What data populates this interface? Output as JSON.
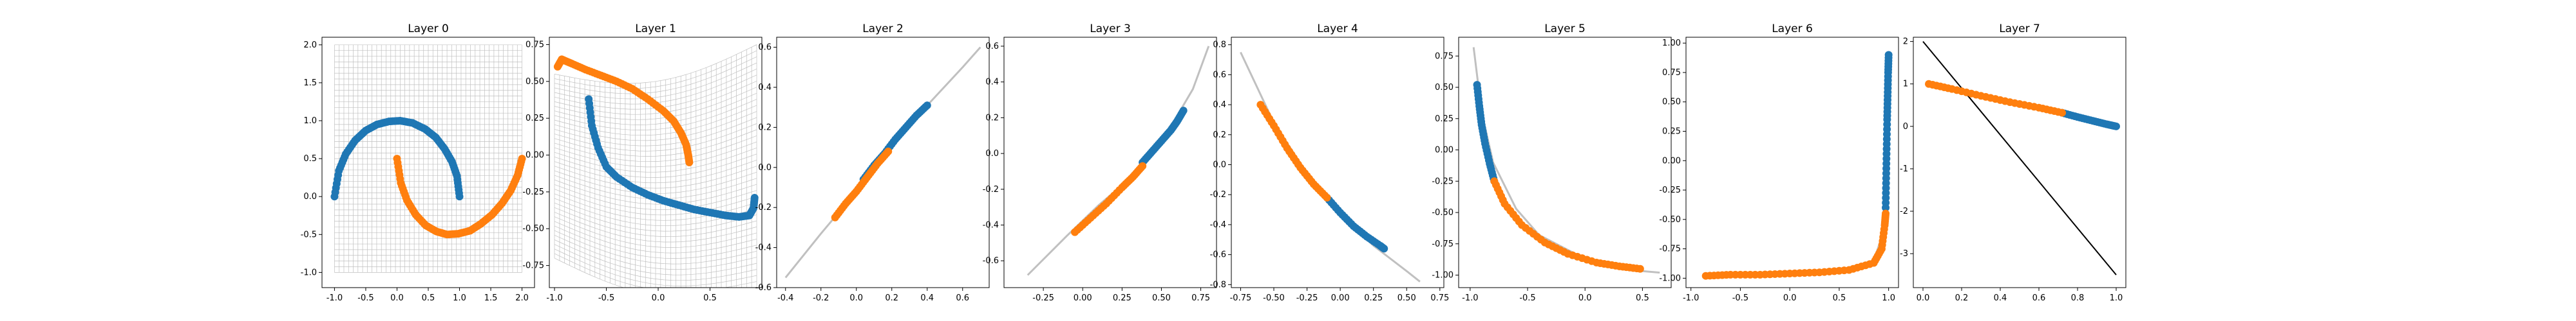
{
  "figure": {
    "background": "#ffffff"
  },
  "colors": {
    "class0": "#1f77b4",
    "class1": "#ff7f0e",
    "grid": "#c0c0c0",
    "boundary": "#000000"
  },
  "chart_data": [
    {
      "type": "scatter",
      "title": "Layer 0",
      "xlim": [
        -1.2,
        2.2
      ],
      "ylim": [
        -1.2,
        2.1
      ],
      "xticks": [
        "-1.0",
        "-0.5",
        "0.0",
        "0.5",
        "1.0",
        "1.5",
        "2.0"
      ],
      "yticks": [
        "-1.0",
        "-0.5",
        "0.0",
        "0.5",
        "1.0",
        "1.5",
        "2.0"
      ],
      "grid_mesh": true,
      "series": [
        {
          "class": 0,
          "x": [
            -1.0,
            -0.93,
            -0.82,
            -0.67,
            -0.5,
            -0.32,
            -0.13,
            0.05,
            0.25,
            0.45,
            0.62,
            0.76,
            0.88,
            0.96,
            1.0
          ],
          "y": [
            0.0,
            0.34,
            0.56,
            0.74,
            0.87,
            0.95,
            0.99,
            1.0,
            0.97,
            0.89,
            0.78,
            0.63,
            0.46,
            0.27,
            0.0
          ]
        },
        {
          "class": 1,
          "x": [
            0.0,
            0.06,
            0.16,
            0.3,
            0.46,
            0.63,
            0.8,
            0.98,
            1.17,
            1.34,
            1.52,
            1.68,
            1.82,
            1.93,
            2.0
          ],
          "y": [
            0.5,
            0.18,
            -0.05,
            -0.24,
            -0.38,
            -0.46,
            -0.5,
            -0.49,
            -0.45,
            -0.36,
            -0.24,
            -0.09,
            0.08,
            0.28,
            0.5
          ]
        }
      ]
    },
    {
      "type": "scatter",
      "title": "Layer 1",
      "xlim": [
        -1.05,
        1.0
      ],
      "ylim": [
        -0.9,
        0.8
      ],
      "xticks": [
        "-1.0",
        "-0.5",
        "0.0",
        "0.5"
      ],
      "yticks": [
        "-0.75",
        "-0.50",
        "-0.25",
        "0.00",
        "0.25",
        "0.50",
        "0.75"
      ],
      "grid_mesh": true,
      "series": [
        {
          "class": 0,
          "x": [
            -0.67,
            -0.64,
            -0.58,
            -0.5,
            -0.4,
            -0.25,
            -0.1,
            0.05,
            0.2,
            0.35,
            0.5,
            0.65,
            0.78,
            0.88,
            0.92,
            0.93
          ],
          "y": [
            0.38,
            0.2,
            0.05,
            -0.08,
            -0.15,
            -0.22,
            -0.27,
            -0.31,
            -0.34,
            -0.37,
            -0.39,
            -0.41,
            -0.42,
            -0.41,
            -0.36,
            -0.29
          ]
        },
        {
          "class": 1,
          "x": [
            -0.97,
            -0.93,
            -0.83,
            -0.7,
            -0.55,
            -0.4,
            -0.25,
            -0.1,
            0.05,
            0.15,
            0.22,
            0.27,
            0.29,
            0.3
          ],
          "y": [
            0.6,
            0.65,
            0.62,
            0.58,
            0.54,
            0.5,
            0.45,
            0.38,
            0.3,
            0.23,
            0.15,
            0.07,
            0.0,
            -0.05
          ]
        }
      ]
    },
    {
      "type": "scatter",
      "title": "Layer 2",
      "xlim": [
        -0.45,
        0.75
      ],
      "ylim": [
        -0.6,
        0.65
      ],
      "xticks": [
        "-0.4",
        "-0.2",
        "0.0",
        "0.2",
        "0.4",
        "0.6"
      ],
      "yticks": [
        "-0.6",
        "-0.4",
        "-0.2",
        "0.0",
        "0.2",
        "0.4",
        "0.6"
      ],
      "curve": {
        "x": [
          -0.4,
          -0.2,
          0.0,
          0.2,
          0.4,
          0.6,
          0.7
        ],
        "y": [
          -0.55,
          -0.33,
          -0.12,
          0.1,
          0.31,
          0.5,
          0.6
        ]
      },
      "series": [
        {
          "class": 0,
          "x": [
            0.04,
            0.1,
            0.16,
            0.22,
            0.28,
            0.34,
            0.4
          ],
          "y": [
            -0.06,
            0.01,
            0.07,
            0.14,
            0.2,
            0.26,
            0.31
          ]
        },
        {
          "class": 1,
          "x": [
            -0.12,
            -0.06,
            0.0,
            0.06,
            0.12,
            0.18
          ],
          "y": [
            -0.25,
            -0.18,
            -0.12,
            -0.05,
            0.02,
            0.08
          ]
        }
      ]
    },
    {
      "type": "scatter",
      "title": "Layer 3",
      "xlim": [
        -0.5,
        0.85
      ],
      "ylim": [
        -0.75,
        0.65
      ],
      "xticks": [
        "-0.25",
        "0.00",
        "0.25",
        "0.50",
        "0.75"
      ],
      "yticks": [
        "-0.6",
        "-0.4",
        "-0.2",
        "0.0",
        "0.2",
        "0.4",
        "0.6"
      ],
      "curve": {
        "x": [
          -0.35,
          -0.1,
          0.1,
          0.3,
          0.5,
          0.7,
          0.8
        ],
        "y": [
          -0.68,
          -0.46,
          -0.29,
          -0.14,
          0.06,
          0.36,
          0.6
        ]
      },
      "series": [
        {
          "class": 0,
          "x": [
            0.38,
            0.44,
            0.5,
            0.56,
            0.6,
            0.64
          ],
          "y": [
            -0.05,
            0.01,
            0.07,
            0.13,
            0.18,
            0.24
          ]
        },
        {
          "class": 1,
          "x": [
            -0.05,
            0.05,
            0.15,
            0.25,
            0.32,
            0.38
          ],
          "y": [
            -0.44,
            -0.36,
            -0.28,
            -0.19,
            -0.13,
            -0.07
          ]
        }
      ]
    },
    {
      "type": "scatter",
      "title": "Layer 4",
      "xlim": [
        -0.82,
        0.78
      ],
      "ylim": [
        -0.82,
        0.85
      ],
      "xticks": [
        "-0.75",
        "-0.50",
        "-0.25",
        "0.00",
        "0.25",
        "0.50",
        "0.75"
      ],
      "yticks": [
        "-0.8",
        "-0.6",
        "-0.4",
        "-0.2",
        "0.0",
        "0.2",
        "0.4",
        "0.6",
        "0.8"
      ],
      "curve": {
        "x": [
          -0.75,
          -0.5,
          -0.25,
          0.0,
          0.25,
          0.5,
          0.6
        ],
        "y": [
          0.75,
          0.28,
          -0.06,
          -0.33,
          -0.54,
          -0.71,
          -0.78
        ]
      },
      "series": [
        {
          "class": 0,
          "x": [
            -0.1,
            0.0,
            0.1,
            0.2,
            0.3,
            0.33
          ],
          "y": [
            -0.22,
            -0.32,
            -0.41,
            -0.48,
            -0.54,
            -0.56
          ]
        },
        {
          "class": 1,
          "x": [
            -0.6,
            -0.5,
            -0.4,
            -0.3,
            -0.2,
            -0.1
          ],
          "y": [
            0.4,
            0.26,
            0.11,
            -0.02,
            -0.13,
            -0.22
          ]
        }
      ]
    },
    {
      "type": "scatter",
      "title": "Layer 5",
      "xlim": [
        -1.1,
        0.75
      ],
      "ylim": [
        -1.1,
        0.9
      ],
      "xticks": [
        "-1.0",
        "-0.5",
        "0.0",
        "0.5"
      ],
      "yticks": [
        "-1.00",
        "-0.75",
        "-0.50",
        "-0.25",
        "0.00",
        "0.25",
        "0.50",
        "0.75"
      ],
      "curve": {
        "x": [
          -0.97,
          -0.9,
          -0.8,
          -0.6,
          -0.4,
          0.0,
          0.4,
          0.65
        ],
        "y": [
          0.82,
          0.3,
          -0.1,
          -0.47,
          -0.68,
          -0.87,
          -0.96,
          -0.98
        ]
      },
      "series": [
        {
          "class": 0,
          "x": [
            -0.94,
            -0.92,
            -0.9,
            -0.87,
            -0.83,
            -0.79
          ],
          "y": [
            0.52,
            0.35,
            0.2,
            0.05,
            -0.11,
            -0.25
          ]
        },
        {
          "class": 1,
          "x": [
            -0.79,
            -0.7,
            -0.55,
            -0.35,
            -0.15,
            0.1,
            0.3,
            0.48
          ],
          "y": [
            -0.25,
            -0.43,
            -0.6,
            -0.74,
            -0.83,
            -0.9,
            -0.93,
            -0.95
          ]
        }
      ]
    },
    {
      "type": "scatter",
      "title": "Layer 6",
      "xlim": [
        -1.05,
        1.1
      ],
      "ylim": [
        -1.08,
        1.05
      ],
      "xticks": [
        "-1.0",
        "-0.5",
        "0.0",
        "0.5",
        "1.0"
      ],
      "yticks": [
        "-1.00",
        "-0.75",
        "-0.50",
        "-0.25",
        "0.00",
        "0.25",
        "0.50",
        "0.75",
        "1.00"
      ],
      "curve": {
        "x": [
          -0.85,
          -0.5,
          0.0,
          0.5,
          0.85,
          0.95,
          0.98,
          1.0
        ],
        "y": [
          -0.98,
          -0.97,
          -0.96,
          -0.94,
          -0.85,
          -0.6,
          -0.2,
          0.9
        ]
      },
      "series": [
        {
          "class": 0,
          "x": [
            0.97,
            0.975,
            0.98,
            0.985,
            0.99,
            0.995,
            1.0
          ],
          "y": [
            -0.4,
            -0.15,
            0.1,
            0.35,
            0.55,
            0.75,
            0.9
          ]
        },
        {
          "class": 1,
          "x": [
            -0.85,
            -0.6,
            -0.3,
            0.0,
            0.3,
            0.6,
            0.85,
            0.93,
            0.96,
            0.97
          ],
          "y": [
            -0.98,
            -0.97,
            -0.97,
            -0.96,
            -0.95,
            -0.93,
            -0.87,
            -0.75,
            -0.55,
            -0.45
          ]
        }
      ]
    },
    {
      "type": "scatter",
      "title": "Layer 7",
      "xlim": [
        -0.05,
        1.05
      ],
      "ylim": [
        -3.8,
        2.1
      ],
      "xticks": [
        "0.0",
        "0.2",
        "0.4",
        "0.6",
        "0.8",
        "1.0"
      ],
      "yticks": [
        "-3",
        "-2",
        "-1",
        "0",
        "1",
        "2"
      ],
      "boundary": {
        "x": [
          0.0,
          1.0
        ],
        "y": [
          2.0,
          -3.5
        ]
      },
      "series": [
        {
          "class": 0,
          "x": [
            0.72,
            0.8,
            0.88,
            0.95,
            1.0
          ],
          "y": [
            0.32,
            0.22,
            0.13,
            0.05,
            0.0
          ]
        },
        {
          "class": 1,
          "x": [
            0.03,
            0.15,
            0.3,
            0.45,
            0.6,
            0.72
          ],
          "y": [
            1.0,
            0.88,
            0.72,
            0.57,
            0.44,
            0.32
          ]
        }
      ]
    }
  ]
}
